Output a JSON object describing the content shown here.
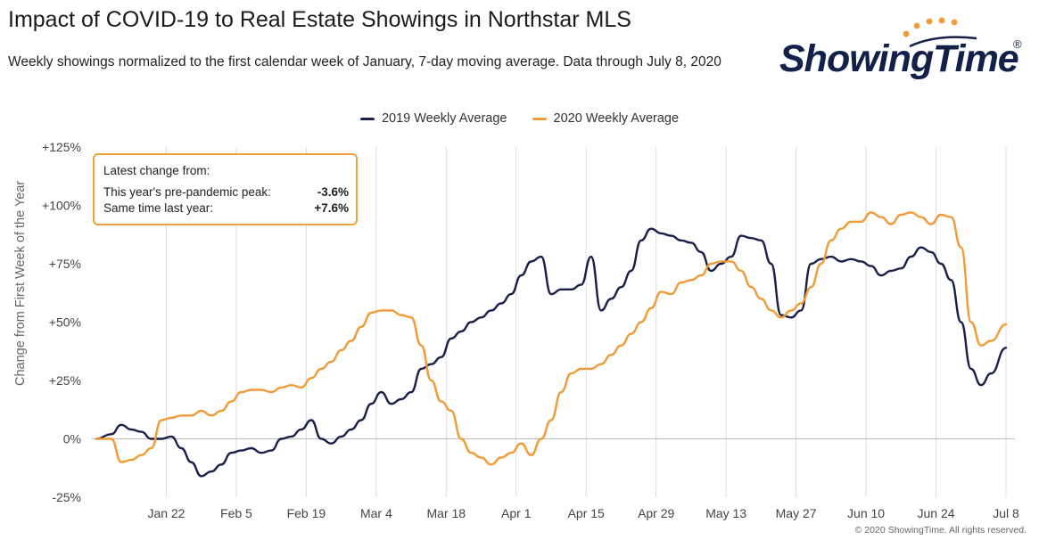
{
  "header": {
    "title": "Impact of COVID-19 to Real Estate Showings in Northstar MLS",
    "subtitle": "Weekly showings normalized to the first calendar week of January, 7-day moving average. Data through July 8, 2020"
  },
  "logo": {
    "text": "ShowingTime",
    "registered": "®"
  },
  "callout": {
    "title": "Latest change from:",
    "rows": [
      {
        "label": "This year's pre-pandemic peak:",
        "value": "-3.6%"
      },
      {
        "label": "Same time last year:",
        "value": "+7.6%"
      }
    ]
  },
  "footer": {
    "copyright": "© 2020 ShowingTime. All rights reserved."
  },
  "chart_data": {
    "type": "line",
    "title": "Impact of COVID-19 to Real Estate Showings in Northstar MLS",
    "ylabel": "Change from First Week of the Year",
    "xlabel": "",
    "ylim": [
      -25,
      125
    ],
    "yticks": [
      -25,
      0,
      25,
      50,
      75,
      100,
      125
    ],
    "ytick_labels": [
      "-25%",
      "0%",
      "+25%",
      "+50%",
      "+75%",
      "+100%",
      "+125%"
    ],
    "xlim": [
      "Jan 8",
      "Jul 8"
    ],
    "xticks": [
      "Jan 22",
      "Feb 5",
      "Feb 19",
      "Mar 4",
      "Mar 18",
      "Apr 1",
      "Apr 15",
      "Apr 29",
      "May 13",
      "May 27",
      "Jun 10",
      "Jun 24",
      "Jul 8"
    ],
    "grid": "vertical",
    "legend_position": "top",
    "colors": {
      "2019": "#1a1f4a",
      "2020": "#f29a35",
      "grid": "#dcdcdc",
      "zero": "#bbbbbb"
    },
    "series": [
      {
        "name": "2019 Weekly Average",
        "x": [
          "Jan 8",
          "Jan 11",
          "Jan 13",
          "Jan 15",
          "Jan 17",
          "Jan 19",
          "Jan 21",
          "Jan 23",
          "Jan 25",
          "Jan 27",
          "Jan 29",
          "Jan 31",
          "Feb 2",
          "Feb 4",
          "Feb 6",
          "Feb 8",
          "Feb 10",
          "Feb 12",
          "Feb 14",
          "Feb 16",
          "Feb 18",
          "Feb 20",
          "Feb 22",
          "Feb 24",
          "Feb 26",
          "Feb 28",
          "Mar 1",
          "Mar 3",
          "Mar 5",
          "Mar 7",
          "Mar 9",
          "Mar 11",
          "Mar 13",
          "Mar 15",
          "Mar 17",
          "Mar 19",
          "Mar 21",
          "Mar 23",
          "Mar 25",
          "Mar 27",
          "Mar 29",
          "Mar 31",
          "Apr 2",
          "Apr 4",
          "Apr 6",
          "Apr 8",
          "Apr 10",
          "Apr 12",
          "Apr 14",
          "Apr 16",
          "Apr 18",
          "Apr 20",
          "Apr 22",
          "Apr 24",
          "Apr 26",
          "Apr 28",
          "Apr 30",
          "May 2",
          "May 4",
          "May 6",
          "May 8",
          "May 10",
          "May 12",
          "May 14",
          "May 16",
          "May 18",
          "May 20",
          "May 22",
          "May 24",
          "May 26",
          "May 28",
          "May 30",
          "Jun 1",
          "Jun 3",
          "Jun 5",
          "Jun 7",
          "Jun 9",
          "Jun 11",
          "Jun 13",
          "Jun 15",
          "Jun 17",
          "Jun 19",
          "Jun 21",
          "Jun 23",
          "Jun 25",
          "Jun 27",
          "Jun 29",
          "Jul 1",
          "Jul 3",
          "Jul 5",
          "Jul 8"
        ],
        "values": [
          0,
          2,
          6,
          4,
          3,
          0,
          0,
          1,
          -4,
          -10,
          -16,
          -14,
          -11,
          -6,
          -5,
          -4,
          -6,
          -5,
          0,
          1,
          4,
          8,
          0,
          -2,
          1,
          4,
          8,
          15,
          20,
          15,
          17,
          20,
          30,
          32,
          35,
          43,
          46,
          50,
          52,
          55,
          58,
          62,
          70,
          76,
          78,
          62,
          64,
          64,
          66,
          78,
          55,
          60,
          65,
          72,
          85,
          90,
          88,
          87,
          85,
          84,
          80,
          72,
          75,
          78,
          87,
          86,
          85,
          75,
          53,
          52,
          55,
          75,
          77,
          78,
          76,
          77,
          76,
          74,
          70,
          72,
          73,
          78,
          82,
          80,
          75,
          68,
          50,
          30,
          23,
          28,
          39
        ]
      },
      {
        "name": "2020 Weekly Average",
        "x": [
          "Jan 8",
          "Jan 11",
          "Jan 13",
          "Jan 15",
          "Jan 17",
          "Jan 19",
          "Jan 21",
          "Jan 23",
          "Jan 25",
          "Jan 27",
          "Jan 29",
          "Jan 31",
          "Feb 2",
          "Feb 4",
          "Feb 6",
          "Feb 8",
          "Feb 10",
          "Feb 12",
          "Feb 14",
          "Feb 16",
          "Feb 18",
          "Feb 20",
          "Feb 22",
          "Feb 24",
          "Feb 26",
          "Feb 28",
          "Mar 1",
          "Mar 3",
          "Mar 5",
          "Mar 7",
          "Mar 9",
          "Mar 11",
          "Mar 13",
          "Mar 15",
          "Mar 17",
          "Mar 19",
          "Mar 21",
          "Mar 23",
          "Mar 25",
          "Mar 27",
          "Mar 29",
          "Mar 31",
          "Apr 2",
          "Apr 4",
          "Apr 6",
          "Apr 8",
          "Apr 10",
          "Apr 12",
          "Apr 14",
          "Apr 16",
          "Apr 18",
          "Apr 20",
          "Apr 22",
          "Apr 24",
          "Apr 26",
          "Apr 28",
          "Apr 30",
          "May 2",
          "May 4",
          "May 6",
          "May 8",
          "May 10",
          "May 12",
          "May 14",
          "May 16",
          "May 18",
          "May 20",
          "May 22",
          "May 24",
          "May 26",
          "May 28",
          "May 30",
          "Jun 1",
          "Jun 3",
          "Jun 5",
          "Jun 7",
          "Jun 9",
          "Jun 11",
          "Jun 13",
          "Jun 15",
          "Jun 17",
          "Jun 19",
          "Jun 21",
          "Jun 23",
          "Jun 25",
          "Jun 27",
          "Jun 29",
          "Jul 1",
          "Jul 3",
          "Jul 5",
          "Jul 8"
        ],
        "values": [
          0,
          0,
          -10,
          -9,
          -7,
          -4,
          8,
          9,
          10,
          10,
          12,
          10,
          12,
          16,
          20,
          21,
          21,
          20,
          22,
          23,
          22,
          26,
          30,
          33,
          38,
          42,
          48,
          54,
          55,
          55,
          53,
          52,
          40,
          25,
          16,
          12,
          0,
          -6,
          -8,
          -11,
          -8,
          -6,
          -2,
          -7,
          0,
          8,
          20,
          28,
          30,
          30,
          32,
          36,
          40,
          45,
          50,
          56,
          63,
          62,
          67,
          68,
          70,
          75,
          76,
          76,
          72,
          65,
          60,
          55,
          52,
          55,
          58,
          65,
          75,
          85,
          90,
          93,
          93,
          97,
          95,
          92,
          96,
          97,
          95,
          92,
          96,
          95,
          82,
          50,
          40,
          42,
          49
        ]
      }
    ]
  }
}
